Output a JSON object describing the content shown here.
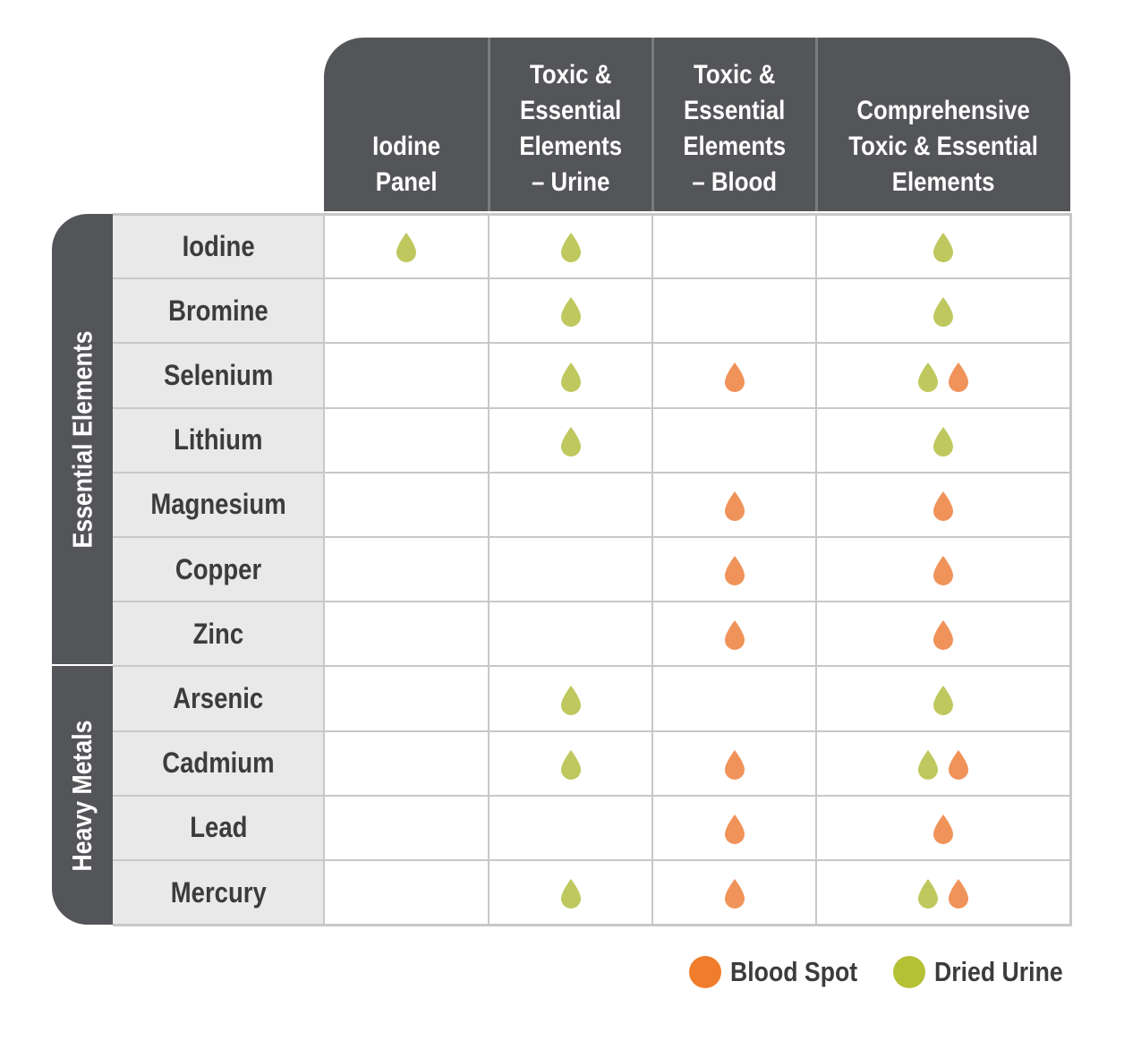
{
  "columns": [
    "Iodine\nPanel",
    "Toxic &\nEssential\nElements\n– Urine",
    "Toxic &\nEssential\nElements\n– Blood",
    "Comprehensive\nToxic & Essential\nElements"
  ],
  "groups": [
    {
      "label": "Essential Elements",
      "rows": 7
    },
    {
      "label": "Heavy Metals",
      "rows": 4
    }
  ],
  "rows": [
    {
      "label": "Iodine",
      "cells": [
        [
          "urine"
        ],
        [
          "urine"
        ],
        [],
        [
          "urine"
        ]
      ]
    },
    {
      "label": "Bromine",
      "cells": [
        [],
        [
          "urine"
        ],
        [],
        [
          "urine"
        ]
      ]
    },
    {
      "label": "Selenium",
      "cells": [
        [],
        [
          "urine"
        ],
        [
          "blood"
        ],
        [
          "urine",
          "blood"
        ]
      ]
    },
    {
      "label": "Lithium",
      "cells": [
        [],
        [
          "urine"
        ],
        [],
        [
          "urine"
        ]
      ]
    },
    {
      "label": "Magnesium",
      "cells": [
        [],
        [],
        [
          "blood"
        ],
        [
          "blood"
        ]
      ]
    },
    {
      "label": "Copper",
      "cells": [
        [],
        [],
        [
          "blood"
        ],
        [
          "blood"
        ]
      ]
    },
    {
      "label": "Zinc",
      "cells": [
        [],
        [],
        [
          "blood"
        ],
        [
          "blood"
        ]
      ]
    },
    {
      "label": "Arsenic",
      "cells": [
        [],
        [
          "urine"
        ],
        [],
        [
          "urine"
        ]
      ]
    },
    {
      "label": "Cadmium",
      "cells": [
        [],
        [
          "urine"
        ],
        [
          "blood"
        ],
        [
          "urine",
          "blood"
        ]
      ]
    },
    {
      "label": "Lead",
      "cells": [
        [],
        [],
        [
          "blood"
        ],
        [
          "blood"
        ]
      ]
    },
    {
      "label": "Mercury",
      "cells": [
        [],
        [
          "urine"
        ],
        [
          "blood"
        ],
        [
          "urine",
          "blood"
        ]
      ]
    }
  ],
  "legend": [
    {
      "key": "blood",
      "label": "Blood Spot",
      "color": "#ef7d2b"
    },
    {
      "key": "urine",
      "label": "Dried Urine",
      "color": "#b5c035"
    }
  ],
  "colors": {
    "header_bg": "#545559",
    "blood_drop": "#f0935a",
    "urine_drop": "#bfc85e"
  }
}
